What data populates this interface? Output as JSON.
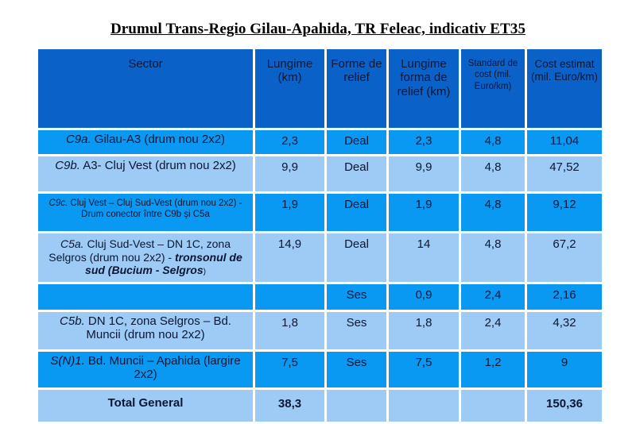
{
  "title": "Drumul Trans-Regio Gilau-Apahida, TR Feleac, indicativ ET35",
  "colors": {
    "header_bg": "#0a62c8",
    "row_bright_bg": "#0999f3",
    "row_light_bg": "#9ecbf5",
    "cell_text": "#0a1634",
    "title_text": "#000000",
    "grid_line": "#ffffff"
  },
  "table": {
    "columns": [
      {
        "label": "Sector",
        "size": "lg"
      },
      {
        "label": "Lungime (km)",
        "size": "lg"
      },
      {
        "label": "Forme de relief",
        "size": "lg"
      },
      {
        "label": "Lungime forma de relief (km)",
        "size": "lg"
      },
      {
        "label": "Standard de cost (mil. Euro/km)",
        "size": "sm"
      },
      {
        "label": "Cost estimat (mil. Euro/km)",
        "size": "md"
      }
    ],
    "rows": [
      {
        "tone": "bright",
        "sector": [
          {
            "t": "C9a.",
            "i": 1
          },
          {
            "t": " Gilau-A3 (drum nou 2x2)"
          }
        ],
        "values": [
          "2,3",
          "Deal",
          "2,3",
          "4,8",
          "11,04"
        ]
      },
      {
        "tone": "light",
        "sector": [
          {
            "t": "C9b.",
            "i": 1
          },
          {
            "t": " A3- Cluj Vest (drum nou 2x2)"
          }
        ],
        "values": [
          "9,9",
          "Deal",
          "9,9",
          "4,8",
          "47,52"
        ]
      },
      {
        "tone": "bright",
        "size": "small",
        "sector": [
          {
            "t": "C9c.",
            "i": 1
          },
          {
            "t": " Cluj Vest – Cluj Sud-Vest (drum nou 2x2) - Drum conector între C9b și C5a"
          }
        ],
        "values": [
          "1,9",
          "Deal",
          "1,9",
          "4,8",
          "9,12"
        ]
      },
      {
        "tone": "light",
        "size": "mid",
        "sector": [
          {
            "t": "C5a.",
            "i": 1
          },
          {
            "t": " Cluj Sud-Vest – DN 1C, zona Selgros (drum nou 2x2) - "
          },
          {
            "t": "tronsonul de sud (Bucium - Selgros",
            "i": 1,
            "b": 1
          },
          {
            "t": ")",
            "sm": 1
          }
        ],
        "values": [
          "14,9",
          "Deal",
          "14",
          "4,8",
          "67,2"
        ]
      },
      {
        "tone": "bright",
        "sector": [],
        "values": [
          "",
          "Ses",
          "0,9",
          "2,4",
          "2,16"
        ]
      },
      {
        "tone": "light",
        "sector": [
          {
            "t": "C5b.",
            "i": 1
          },
          {
            "t": " DN 1C, zona Selgros – Bd. Muncii (drum nou 2x2)"
          }
        ],
        "values": [
          "1,8",
          "Ses",
          "1,8",
          "2,4",
          "4,32"
        ]
      },
      {
        "tone": "bright",
        "sector": [
          {
            "t": "S(N)1.",
            "i": 1
          },
          {
            "t": " Bd. Muncii – Apahida (largire 2x2)"
          }
        ],
        "values": [
          "7,5",
          "Ses",
          "7,5",
          "1,2",
          "9"
        ]
      },
      {
        "tone": "light",
        "bold": true,
        "sector": [
          {
            "t": "Total General",
            "b": 1
          }
        ],
        "values": [
          "38,3",
          "",
          "",
          "",
          "150,36"
        ]
      }
    ]
  }
}
